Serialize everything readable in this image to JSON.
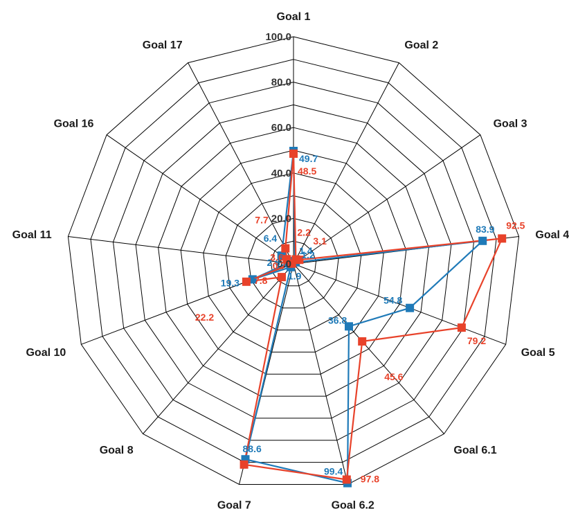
{
  "chart_data": {
    "type": "radar",
    "axes": [
      "Goal 1",
      "Goal 2",
      "Goal 3",
      "Goal 4",
      "Goal 5",
      "Goal 6.1",
      "Goal 6.2",
      "Goal 7",
      "Goal 8",
      "Goal 10",
      "Goal 11",
      "Goal 16",
      "Goal 17"
    ],
    "ticks": [
      "0.0",
      "20.0",
      "40.0",
      "60.0",
      "80.0",
      "100.0"
    ],
    "tick_values": [
      0,
      20,
      40,
      60,
      80,
      100
    ],
    "range": [
      0,
      100
    ],
    "grid": true,
    "legend": "none",
    "series": [
      {
        "color": "#1f7ab8",
        "values": [
          49.7,
          1.4,
          1.2,
          83.9,
          54.8,
          36.8,
          99.4,
          88.6,
          1.9,
          19.3,
          2.6,
          6.4,
          null
        ],
        "labels": [
          "49.7",
          "1.4",
          "1.2",
          "83.9",
          "54.8",
          "36.8",
          "99.4",
          "88.6",
          "1.9",
          "19.3",
          "2.6",
          "6.4",
          ""
        ]
      },
      {
        "color": "#e8422a",
        "values": [
          48.5,
          2.2,
          3.1,
          92.5,
          79.2,
          45.6,
          97.8,
          91.0,
          7.8,
          22.2,
          0.7,
          3.6,
          7.7
        ],
        "labels": [
          "48.5",
          "2.2",
          "3.1",
          "92.5",
          "79.2",
          "45.6",
          "97.8",
          "",
          "7.8",
          "22.2",
          "0.7",
          "3.6",
          "7.7"
        ]
      }
    ]
  }
}
